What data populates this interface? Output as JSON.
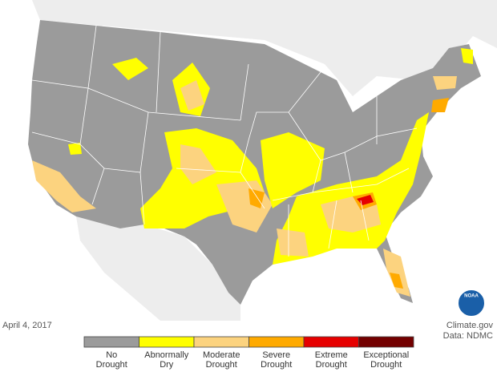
{
  "date": "April 4, 2017",
  "credit": {
    "source": "Climate.gov",
    "data": "Data: NDMC"
  },
  "logo": "NOAA",
  "legend": [
    {
      "lines": [
        "No",
        "Drought"
      ],
      "color": "#9b9b9b"
    },
    {
      "lines": [
        "Abnormally",
        "Dry"
      ],
      "color": "#ffff00"
    },
    {
      "lines": [
        "Moderate",
        "Drought"
      ],
      "color": "#fcd37f"
    },
    {
      "lines": [
        "Severe",
        "Drought"
      ],
      "color": "#ffaa00"
    },
    {
      "lines": [
        "Extreme",
        "Drought"
      ],
      "color": "#e60000"
    },
    {
      "lines": [
        "Exceptional",
        "Drought"
      ],
      "color": "#730000"
    }
  ]
}
